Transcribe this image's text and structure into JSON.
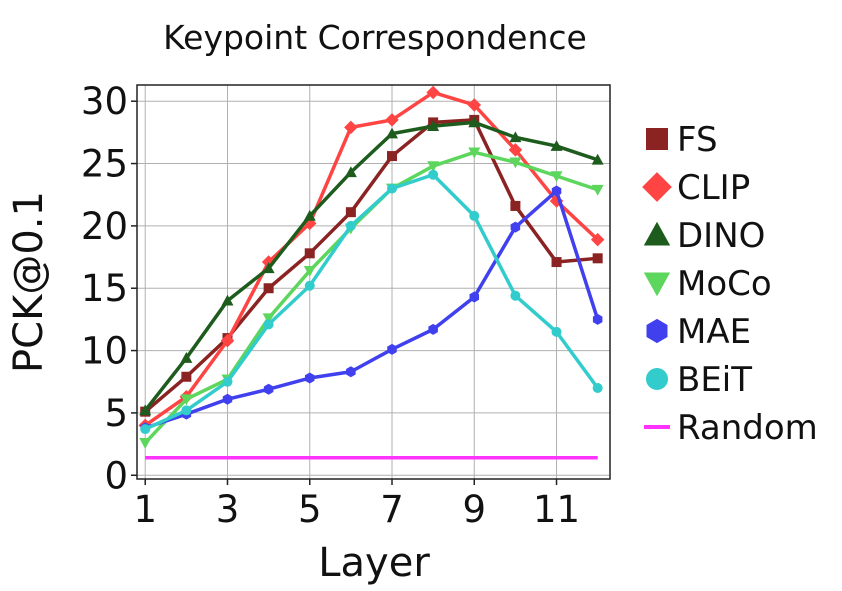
{
  "chart_data": {
    "type": "line",
    "title": "Keypoint Correspondence",
    "xlabel": "Layer",
    "ylabel": "PCK@0.1",
    "xlim": [
      0.8,
      12.3
    ],
    "ylim": [
      -0.3,
      31.3
    ],
    "xticks": [
      1,
      3,
      5,
      7,
      9,
      11
    ],
    "yticks": [
      0,
      5,
      10,
      15,
      20,
      25,
      30
    ],
    "grid": true,
    "legend": "right",
    "x": [
      1,
      2,
      3,
      4,
      5,
      6,
      7,
      8,
      9,
      10,
      11,
      12
    ],
    "series": [
      {
        "name": "FS",
        "color": "#8b2323",
        "marker": "square",
        "values": [
          5.1,
          7.9,
          11.0,
          15.0,
          17.8,
          21.1,
          25.6,
          28.3,
          28.5,
          21.6,
          17.1,
          17.4
        ]
      },
      {
        "name": "CLIP",
        "color": "#ff4444",
        "marker": "diamond",
        "values": [
          4.0,
          6.3,
          10.8,
          17.1,
          20.2,
          27.9,
          28.5,
          30.7,
          29.7,
          26.1,
          22.0,
          18.9
        ]
      },
      {
        "name": "DINO",
        "color": "#1e5c1e",
        "marker": "triangle-up",
        "values": [
          5.2,
          9.4,
          14.0,
          16.6,
          20.8,
          24.3,
          27.4,
          28.0,
          28.3,
          27.1,
          26.4,
          25.3
        ]
      },
      {
        "name": "MoCo",
        "color": "#5cd65c",
        "marker": "triangle-down",
        "values": [
          2.6,
          6.1,
          7.7,
          12.6,
          16.4,
          19.8,
          23.0,
          24.8,
          25.9,
          25.1,
          24.0,
          22.9
        ]
      },
      {
        "name": "MAE",
        "color": "#4040ee",
        "marker": "hexagon",
        "values": [
          3.8,
          4.9,
          6.1,
          6.9,
          7.8,
          8.3,
          10.1,
          11.7,
          14.3,
          19.9,
          22.8,
          12.5
        ]
      },
      {
        "name": "BEiT",
        "color": "#33cccc",
        "marker": "circle",
        "values": [
          3.7,
          5.2,
          7.5,
          12.1,
          15.2,
          20.0,
          23.0,
          24.1,
          20.8,
          14.4,
          11.5,
          7.0
        ]
      },
      {
        "name": "Random",
        "color": "#ff33ff",
        "marker": "line",
        "values": [
          1.4,
          1.4,
          1.4,
          1.4,
          1.4,
          1.4,
          1.4,
          1.4,
          1.4,
          1.4,
          1.4,
          1.4
        ]
      }
    ]
  }
}
